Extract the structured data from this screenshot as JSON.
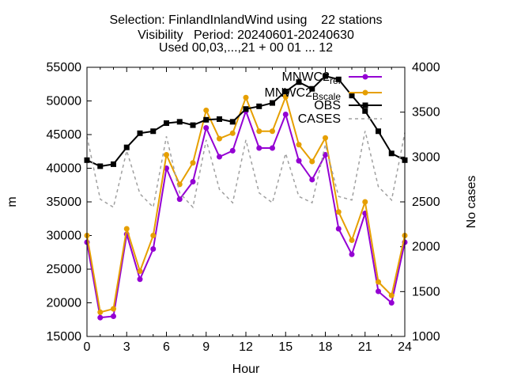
{
  "chart_data": {
    "type": "line",
    "title_lines": [
      "Selection: FinlandInlandWind using    22 stations",
      "Visibility   Period: 20240601-20240630",
      "Used 00,03,...,21 + 00 01 ... 12"
    ],
    "xlabel": "Hour",
    "ylabel": "m",
    "y2label": "No cases",
    "xlim": [
      0,
      24
    ],
    "ylim": [
      15000,
      55000
    ],
    "y2lim": [
      1000,
      4000
    ],
    "xticks": [
      "0",
      "3",
      "6",
      "9",
      "12",
      "15",
      "18",
      "21",
      "24"
    ],
    "yticks": [
      "15000",
      "20000",
      "25000",
      "30000",
      "35000",
      "40000",
      "45000",
      "50000",
      "55000"
    ],
    "y2ticks": [
      "1000",
      "1500",
      "2000",
      "2500",
      "3000",
      "3500",
      "4000"
    ],
    "legend_position": "top-right",
    "x": [
      0,
      1,
      2,
      3,
      4,
      5,
      6,
      7,
      8,
      9,
      10,
      11,
      12,
      13,
      14,
      15,
      16,
      17,
      18,
      19,
      20,
      21,
      22,
      23,
      24
    ],
    "series": [
      {
        "name": "MNWC2",
        "name_sub": "ref",
        "axis": "y",
        "color": "#9400d3",
        "marker": "circle",
        "values": [
          29000,
          17800,
          18000,
          30200,
          23500,
          28000,
          40000,
          35400,
          38000,
          46000,
          41700,
          42600,
          48500,
          43000,
          43000,
          48000,
          41100,
          38300,
          42000,
          31000,
          27200,
          33300,
          21700,
          20000,
          29000
        ]
      },
      {
        "name": "MNWC2",
        "name_sub": "Bscale",
        "axis": "y",
        "color": "#e69f00",
        "marker": "circle",
        "values": [
          30000,
          18600,
          19100,
          31000,
          24700,
          30000,
          42000,
          37600,
          40800,
          48600,
          44400,
          45200,
          50500,
          45500,
          45500,
          50600,
          43500,
          41000,
          44500,
          33500,
          29300,
          35000,
          23100,
          21100,
          30000
        ]
      },
      {
        "name": "OBS",
        "axis": "y",
        "color": "#000000",
        "marker": "square",
        "values": [
          41200,
          40300,
          40600,
          43100,
          45200,
          45500,
          46700,
          46900,
          46400,
          47200,
          47300,
          46900,
          48800,
          49200,
          49700,
          51400,
          52800,
          51800,
          53700,
          53200,
          50800,
          48500,
          45500,
          42200,
          41200
        ]
      },
      {
        "name": "CASES",
        "axis": "y2",
        "color": "#a0a0a0",
        "dashed": true,
        "values": [
          3230,
          2530,
          2440,
          3070,
          2590,
          2440,
          3230,
          2600,
          2440,
          3190,
          2640,
          2490,
          3190,
          2600,
          2490,
          3040,
          2560,
          2490,
          3140,
          2560,
          2520,
          3290,
          2670,
          2520,
          3270
        ]
      }
    ]
  }
}
